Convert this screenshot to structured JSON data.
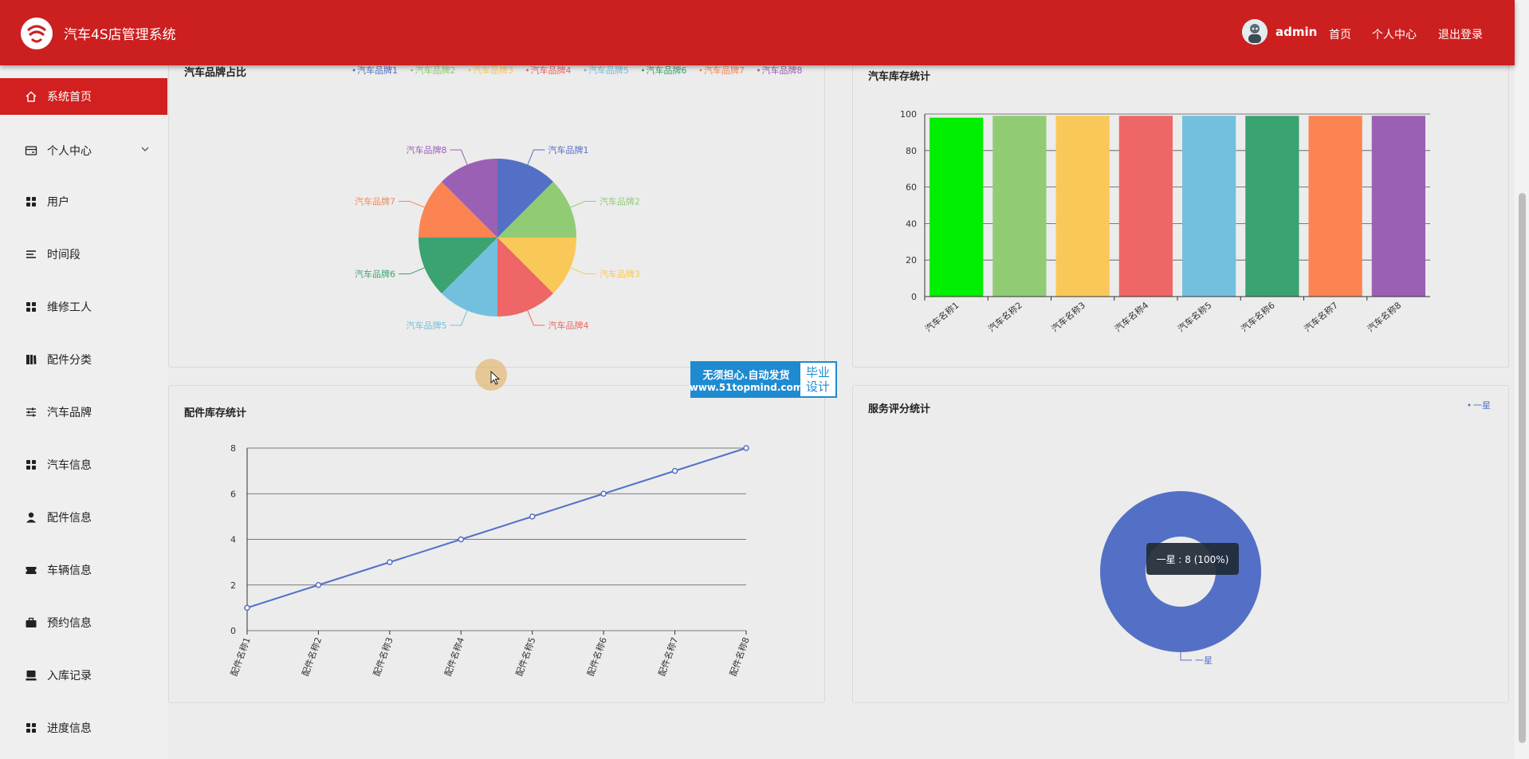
{
  "header": {
    "app_title": "汽车4S店管理系统",
    "username": "admin",
    "nav": [
      "首页",
      "个人中心",
      "退出登录"
    ]
  },
  "sidebar": {
    "items": [
      {
        "label": "系统首页",
        "icon": "home-icon",
        "active": true
      },
      {
        "label": "个人中心",
        "icon": "profile-card-icon",
        "has_submenu": true
      },
      {
        "label": "用户",
        "icon": "grid-icon"
      },
      {
        "label": "时间段",
        "icon": "list-icon"
      },
      {
        "label": "维修工人",
        "icon": "grid-icon"
      },
      {
        "label": "配件分类",
        "icon": "book-icon"
      },
      {
        "label": "汽车品牌",
        "icon": "sliders-icon"
      },
      {
        "label": "汽车信息",
        "icon": "grid-icon"
      },
      {
        "label": "配件信息",
        "icon": "user-icon"
      },
      {
        "label": "车辆信息",
        "icon": "ticket-icon"
      },
      {
        "label": "预约信息",
        "icon": "briefcase-icon"
      },
      {
        "label": "入库记录",
        "icon": "monitor-icon"
      },
      {
        "label": "进度信息",
        "icon": "grid-icon"
      }
    ]
  },
  "panels": {
    "brand_share": {
      "title": "汽车品牌占比"
    },
    "car_stock": {
      "title": "汽车库存统计"
    },
    "parts_stock": {
      "title": "配件库存统计"
    },
    "service_rating": {
      "title": "服务评分统计"
    }
  },
  "watermark": {
    "line1": "无须担心.自动发货",
    "line2": "www.51topmind.com",
    "right1": "毕业",
    "right2": "设计"
  },
  "chart_data": [
    {
      "id": "brand_share",
      "type": "pie",
      "title": "汽车品牌占比",
      "legend": "top",
      "labels": [
        "汽车品牌1",
        "汽车品牌2",
        "汽车品牌3",
        "汽车品牌4",
        "汽车品牌5",
        "汽车品牌6",
        "汽车品牌7",
        "汽车品牌8"
      ],
      "values": [
        1,
        1,
        1,
        1,
        1,
        1,
        1,
        1
      ],
      "colors": [
        "#5470c6",
        "#91cc75",
        "#fac858",
        "#ee6666",
        "#73c0de",
        "#3ba272",
        "#fc8452",
        "#9a60b4"
      ]
    },
    {
      "id": "car_stock",
      "type": "bar",
      "title": "汽车库存统计",
      "categories": [
        "汽车名称1",
        "汽车名称2",
        "汽车名称3",
        "汽车名称4",
        "汽车名称5",
        "汽车名称6",
        "汽车名称7",
        "汽车名称8"
      ],
      "values": [
        98,
        99,
        99,
        99,
        99,
        99,
        99,
        99
      ],
      "colors": [
        "#00ee00",
        "#91cc75",
        "#fac858",
        "#ee6666",
        "#73c0de",
        "#3ba272",
        "#fc8452",
        "#9a60b4"
      ],
      "ylim": [
        0,
        100
      ],
      "yticks": [
        0,
        20,
        40,
        60,
        80,
        100
      ],
      "grid": true
    },
    {
      "id": "parts_stock",
      "type": "line",
      "title": "配件库存统计",
      "categories": [
        "配件名称1",
        "配件名称2",
        "配件名称3",
        "配件名称4",
        "配件名称5",
        "配件名称6",
        "配件名称7",
        "配件名称8"
      ],
      "values": [
        1,
        2,
        3,
        4,
        5,
        6,
        7,
        8
      ],
      "color": "#5470c6",
      "ylim": [
        0,
        8
      ],
      "yticks": [
        0,
        2,
        4,
        6,
        8
      ],
      "grid": true
    },
    {
      "id": "service_rating",
      "type": "pie",
      "variant": "donut",
      "title": "服务评分统计",
      "legend": "top-right",
      "labels": [
        "一星"
      ],
      "values": [
        8
      ],
      "colors": [
        "#5470c6"
      ],
      "tooltip": "一星 : 8 (100%)"
    }
  ]
}
